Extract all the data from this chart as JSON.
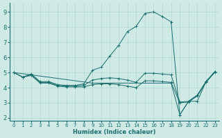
{
  "xlabel": "Humidex (Indice chaleur)",
  "bg_color": "#cfe9e5",
  "grid_color": "#b0d8d4",
  "line_color": "#1a6e6e",
  "xlim": [
    -0.5,
    23.5
  ],
  "ylim": [
    1.8,
    9.6
  ],
  "yticks": [
    2,
    3,
    4,
    5,
    6,
    7,
    8,
    9
  ],
  "xticks": [
    0,
    1,
    2,
    3,
    4,
    5,
    6,
    7,
    8,
    9,
    10,
    11,
    12,
    13,
    14,
    15,
    16,
    17,
    18,
    19,
    20,
    21,
    22,
    23
  ],
  "lines": [
    {
      "x": [
        0,
        1,
        2,
        3,
        4,
        5,
        6,
        7,
        8,
        9,
        10,
        11,
        12,
        13,
        14,
        15,
        16,
        17,
        18,
        19,
        20,
        21,
        22,
        23
      ],
      "y": [
        5.0,
        4.7,
        4.9,
        4.4,
        4.4,
        4.2,
        4.15,
        4.15,
        4.25,
        5.15,
        5.35,
        6.1,
        6.8,
        7.7,
        8.05,
        8.9,
        9.0,
        8.7,
        8.35,
        2.2,
        3.1,
        3.1,
        4.4,
        5.05
      ]
    },
    {
      "x": [
        0,
        1,
        2,
        3,
        4,
        5,
        6,
        7,
        8,
        9,
        10,
        11,
        12,
        13,
        14,
        15,
        16,
        17,
        18,
        19,
        20,
        21,
        22,
        23
      ],
      "y": [
        5.0,
        4.7,
        4.85,
        4.35,
        4.35,
        4.15,
        4.1,
        4.1,
        4.15,
        4.5,
        4.6,
        4.65,
        4.6,
        4.5,
        4.35,
        4.95,
        4.95,
        4.9,
        4.85,
        3.05,
        3.1,
        3.5,
        4.4,
        5.05
      ]
    },
    {
      "x": [
        0,
        9,
        18,
        19,
        20,
        21,
        22,
        23
      ],
      "y": [
        5.0,
        4.3,
        4.3,
        2.2,
        3.1,
        3.5,
        4.4,
        5.05
      ]
    },
    {
      "x": [
        0,
        1,
        2,
        3,
        4,
        5,
        6,
        7,
        8,
        9,
        10,
        11,
        12,
        13,
        14,
        15,
        16,
        17,
        18,
        19,
        20,
        21,
        22,
        23
      ],
      "y": [
        5.0,
        4.7,
        4.8,
        4.3,
        4.3,
        4.1,
        4.05,
        4.05,
        4.05,
        4.2,
        4.25,
        4.25,
        4.2,
        4.1,
        4.0,
        4.45,
        4.45,
        4.4,
        4.35,
        3.0,
        3.05,
        3.45,
        4.35,
        5.0
      ]
    }
  ]
}
